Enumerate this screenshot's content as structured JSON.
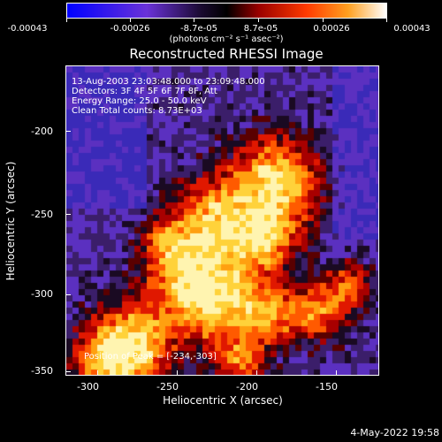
{
  "colorbar": {
    "tick_labels": [
      "-0.00043",
      "-0.00026",
      "-8.7e-05",
      "8.7e-05",
      "0.00026",
      "0.00043"
    ],
    "units": "(photons cm⁻² s⁻¹ asec⁻²)",
    "colors": [
      "#0000ff",
      "#7a3fd0",
      "#000000",
      "#b00000",
      "#ff5500",
      "#ffd23a",
      "#ffffff"
    ]
  },
  "title": "Reconstructed RHESSI Image",
  "info_lines": [
    "13-Aug-2003 23:03:48.000 to 23:09:48.000",
    "Detectors: 3F 4F 5F 6F 7F 8F, Att",
    "Energy Range: 25.0 - 50.0 keV",
    "Clean     Total counts: 8.73E+03"
  ],
  "peak_text": "Position of Peak = [-234,-303]",
  "x_axis": {
    "label": "Heliocentric X (arcsec)",
    "ticks": [
      "-300",
      "-250",
      "-200",
      "-150"
    ]
  },
  "y_axis": {
    "label": "Heliocentric Y (arcsec)",
    "ticks": [
      "-200",
      "-250",
      "-300",
      "-350"
    ]
  },
  "datestamp": "4-May-2022 19:58"
}
